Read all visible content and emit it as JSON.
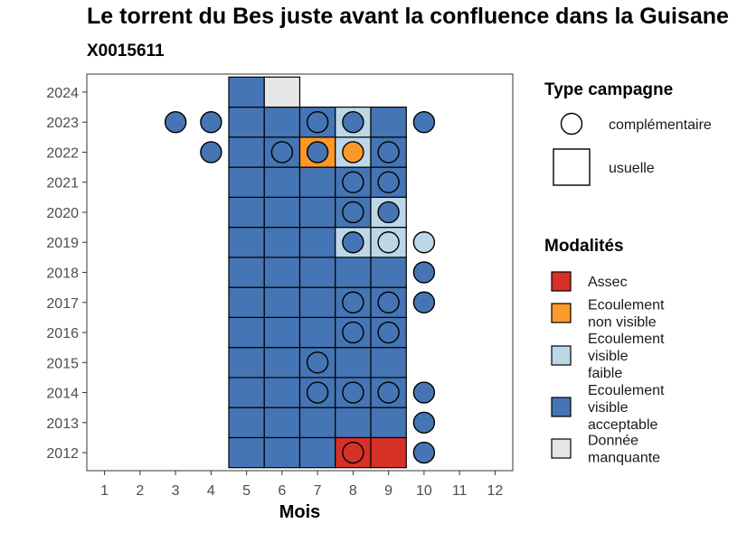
{
  "title": "Le torrent du Bes juste avant la confluence dans la Guisane",
  "subtitle": "X0015611",
  "colors": {
    "Assec": "#d73027",
    "Ecoulement non visible": "#fe9929",
    "Ecoulement visible faible": "#bdd7e7",
    "Ecoulement visible acceptable": "#4575b4",
    "Donnée manquante": "#e6e6e6"
  },
  "chart_data": {
    "type": "heatmap",
    "xlabel": "Mois",
    "ylabel": "",
    "x_ticks": [
      1,
      2,
      3,
      4,
      5,
      6,
      7,
      8,
      9,
      10,
      11,
      12
    ],
    "y_ticks": [
      2012,
      2013,
      2014,
      2015,
      2016,
      2017,
      2018,
      2019,
      2020,
      2021,
      2022,
      2023,
      2024
    ],
    "xlim": [
      0.5,
      12.5
    ],
    "ylim": [
      2011.4,
      2024.6
    ],
    "legend_position": "right",
    "legends": [
      {
        "title": "Type campagne",
        "entries": [
          {
            "label": "complémentaire",
            "shape": "circle"
          },
          {
            "label": "usuelle",
            "shape": "square"
          }
        ]
      },
      {
        "title": "Modalités",
        "entries": [
          {
            "label": "Assec",
            "value": "Assec"
          },
          {
            "label": "Ecoulement\nnon visible",
            "value": "Ecoulement non visible"
          },
          {
            "label": "Ecoulement\nvisible\nfaible",
            "value": "Ecoulement visible faible"
          },
          {
            "label": "Ecoulement\nvisible\nacceptable",
            "value": "Ecoulement visible acceptable"
          },
          {
            "label": "Donnée\nmanquante",
            "value": "Donnée manquante"
          }
        ]
      }
    ],
    "usuelle": [
      {
        "year": 2012,
        "month": 5,
        "value": "Ecoulement visible acceptable"
      },
      {
        "year": 2012,
        "month": 6,
        "value": "Ecoulement visible acceptable"
      },
      {
        "year": 2012,
        "month": 7,
        "value": "Ecoulement visible acceptable"
      },
      {
        "year": 2012,
        "month": 8,
        "value": "Assec"
      },
      {
        "year": 2012,
        "month": 9,
        "value": "Assec"
      },
      {
        "year": 2013,
        "month": 5,
        "value": "Ecoulement visible acceptable"
      },
      {
        "year": 2013,
        "month": 6,
        "value": "Ecoulement visible acceptable"
      },
      {
        "year": 2013,
        "month": 7,
        "value": "Ecoulement visible acceptable"
      },
      {
        "year": 2013,
        "month": 8,
        "value": "Ecoulement visible acceptable"
      },
      {
        "year": 2013,
        "month": 9,
        "value": "Ecoulement visible acceptable"
      },
      {
        "year": 2014,
        "month": 5,
        "value": "Ecoulement visible acceptable"
      },
      {
        "year": 2014,
        "month": 6,
        "value": "Ecoulement visible acceptable"
      },
      {
        "year": 2014,
        "month": 7,
        "value": "Ecoulement visible acceptable"
      },
      {
        "year": 2014,
        "month": 8,
        "value": "Ecoulement visible acceptable"
      },
      {
        "year": 2014,
        "month": 9,
        "value": "Ecoulement visible acceptable"
      },
      {
        "year": 2015,
        "month": 5,
        "value": "Ecoulement visible acceptable"
      },
      {
        "year": 2015,
        "month": 6,
        "value": "Ecoulement visible acceptable"
      },
      {
        "year": 2015,
        "month": 7,
        "value": "Ecoulement visible acceptable"
      },
      {
        "year": 2015,
        "month": 8,
        "value": "Ecoulement visible acceptable"
      },
      {
        "year": 2015,
        "month": 9,
        "value": "Ecoulement visible acceptable"
      },
      {
        "year": 2016,
        "month": 5,
        "value": "Ecoulement visible acceptable"
      },
      {
        "year": 2016,
        "month": 6,
        "value": "Ecoulement visible acceptable"
      },
      {
        "year": 2016,
        "month": 7,
        "value": "Ecoulement visible acceptable"
      },
      {
        "year": 2016,
        "month": 8,
        "value": "Ecoulement visible acceptable"
      },
      {
        "year": 2016,
        "month": 9,
        "value": "Ecoulement visible acceptable"
      },
      {
        "year": 2017,
        "month": 5,
        "value": "Ecoulement visible acceptable"
      },
      {
        "year": 2017,
        "month": 6,
        "value": "Ecoulement visible acceptable"
      },
      {
        "year": 2017,
        "month": 7,
        "value": "Ecoulement visible acceptable"
      },
      {
        "year": 2017,
        "month": 8,
        "value": "Ecoulement visible acceptable"
      },
      {
        "year": 2017,
        "month": 9,
        "value": "Ecoulement visible acceptable"
      },
      {
        "year": 2018,
        "month": 5,
        "value": "Ecoulement visible acceptable"
      },
      {
        "year": 2018,
        "month": 6,
        "value": "Ecoulement visible acceptable"
      },
      {
        "year": 2018,
        "month": 7,
        "value": "Ecoulement visible acceptable"
      },
      {
        "year": 2018,
        "month": 8,
        "value": "Ecoulement visible acceptable"
      },
      {
        "year": 2018,
        "month": 9,
        "value": "Ecoulement visible acceptable"
      },
      {
        "year": 2019,
        "month": 5,
        "value": "Ecoulement visible acceptable"
      },
      {
        "year": 2019,
        "month": 6,
        "value": "Ecoulement visible acceptable"
      },
      {
        "year": 2019,
        "month": 7,
        "value": "Ecoulement visible acceptable"
      },
      {
        "year": 2019,
        "month": 8,
        "value": "Ecoulement visible faible"
      },
      {
        "year": 2019,
        "month": 9,
        "value": "Ecoulement visible faible"
      },
      {
        "year": 2020,
        "month": 5,
        "value": "Ecoulement visible acceptable"
      },
      {
        "year": 2020,
        "month": 6,
        "value": "Ecoulement visible acceptable"
      },
      {
        "year": 2020,
        "month": 7,
        "value": "Ecoulement visible acceptable"
      },
      {
        "year": 2020,
        "month": 8,
        "value": "Ecoulement visible acceptable"
      },
      {
        "year": 2020,
        "month": 9,
        "value": "Ecoulement visible faible"
      },
      {
        "year": 2021,
        "month": 5,
        "value": "Ecoulement visible acceptable"
      },
      {
        "year": 2021,
        "month": 6,
        "value": "Ecoulement visible acceptable"
      },
      {
        "year": 2021,
        "month": 7,
        "value": "Ecoulement visible acceptable"
      },
      {
        "year": 2021,
        "month": 8,
        "value": "Ecoulement visible acceptable"
      },
      {
        "year": 2021,
        "month": 9,
        "value": "Ecoulement visible acceptable"
      },
      {
        "year": 2022,
        "month": 5,
        "value": "Ecoulement visible acceptable"
      },
      {
        "year": 2022,
        "month": 6,
        "value": "Ecoulement visible acceptable"
      },
      {
        "year": 2022,
        "month": 7,
        "value": "Ecoulement non visible"
      },
      {
        "year": 2022,
        "month": 8,
        "value": "Ecoulement visible faible"
      },
      {
        "year": 2022,
        "month": 9,
        "value": "Ecoulement visible acceptable"
      },
      {
        "year": 2023,
        "month": 5,
        "value": "Ecoulement visible acceptable"
      },
      {
        "year": 2023,
        "month": 6,
        "value": "Ecoulement visible acceptable"
      },
      {
        "year": 2023,
        "month": 7,
        "value": "Ecoulement visible acceptable"
      },
      {
        "year": 2023,
        "month": 8,
        "value": "Ecoulement visible faible"
      },
      {
        "year": 2023,
        "month": 9,
        "value": "Ecoulement visible acceptable"
      },
      {
        "year": 2024,
        "month": 5,
        "value": "Ecoulement visible acceptable"
      },
      {
        "year": 2024,
        "month": 6,
        "value": "Donnée manquante"
      }
    ],
    "complementaire": [
      {
        "year": 2012,
        "month": 8,
        "value": "Assec"
      },
      {
        "year": 2012,
        "month": 10,
        "value": "Ecoulement visible acceptable"
      },
      {
        "year": 2013,
        "month": 10,
        "value": "Ecoulement visible acceptable"
      },
      {
        "year": 2014,
        "month": 7,
        "value": "Ecoulement visible acceptable"
      },
      {
        "year": 2014,
        "month": 8,
        "value": "Ecoulement visible acceptable"
      },
      {
        "year": 2014,
        "month": 9,
        "value": "Ecoulement visible acceptable"
      },
      {
        "year": 2014,
        "month": 10,
        "value": "Ecoulement visible acceptable"
      },
      {
        "year": 2015,
        "month": 7,
        "value": "Ecoulement visible acceptable"
      },
      {
        "year": 2016,
        "month": 8,
        "value": "Ecoulement visible acceptable"
      },
      {
        "year": 2016,
        "month": 9,
        "value": "Ecoulement visible acceptable"
      },
      {
        "year": 2017,
        "month": 8,
        "value": "Ecoulement visible acceptable"
      },
      {
        "year": 2017,
        "month": 9,
        "value": "Ecoulement visible acceptable"
      },
      {
        "year": 2017,
        "month": 10,
        "value": "Ecoulement visible acceptable"
      },
      {
        "year": 2018,
        "month": 10,
        "value": "Ecoulement visible acceptable"
      },
      {
        "year": 2019,
        "month": 8,
        "value": "Ecoulement visible acceptable"
      },
      {
        "year": 2019,
        "month": 9,
        "value": "Ecoulement visible faible"
      },
      {
        "year": 2019,
        "month": 10,
        "value": "Ecoulement visible faible"
      },
      {
        "year": 2020,
        "month": 8,
        "value": "Ecoulement visible acceptable"
      },
      {
        "year": 2020,
        "month": 9,
        "value": "Ecoulement visible acceptable"
      },
      {
        "year": 2021,
        "month": 8,
        "value": "Ecoulement visible acceptable"
      },
      {
        "year": 2021,
        "month": 9,
        "value": "Ecoulement visible acceptable"
      },
      {
        "year": 2022,
        "month": 4,
        "value": "Ecoulement visible acceptable"
      },
      {
        "year": 2022,
        "month": 6,
        "value": "Ecoulement visible acceptable"
      },
      {
        "year": 2022,
        "month": 7,
        "value": "Ecoulement visible acceptable"
      },
      {
        "year": 2022,
        "month": 8,
        "value": "Ecoulement non visible"
      },
      {
        "year": 2022,
        "month": 9,
        "value": "Ecoulement visible acceptable"
      },
      {
        "year": 2023,
        "month": 3,
        "value": "Ecoulement visible acceptable"
      },
      {
        "year": 2023,
        "month": 4,
        "value": "Ecoulement visible acceptable"
      },
      {
        "year": 2023,
        "month": 7,
        "value": "Ecoulement visible acceptable"
      },
      {
        "year": 2023,
        "month": 8,
        "value": "Ecoulement visible acceptable"
      },
      {
        "year": 2023,
        "month": 10,
        "value": "Ecoulement visible acceptable"
      }
    ]
  }
}
